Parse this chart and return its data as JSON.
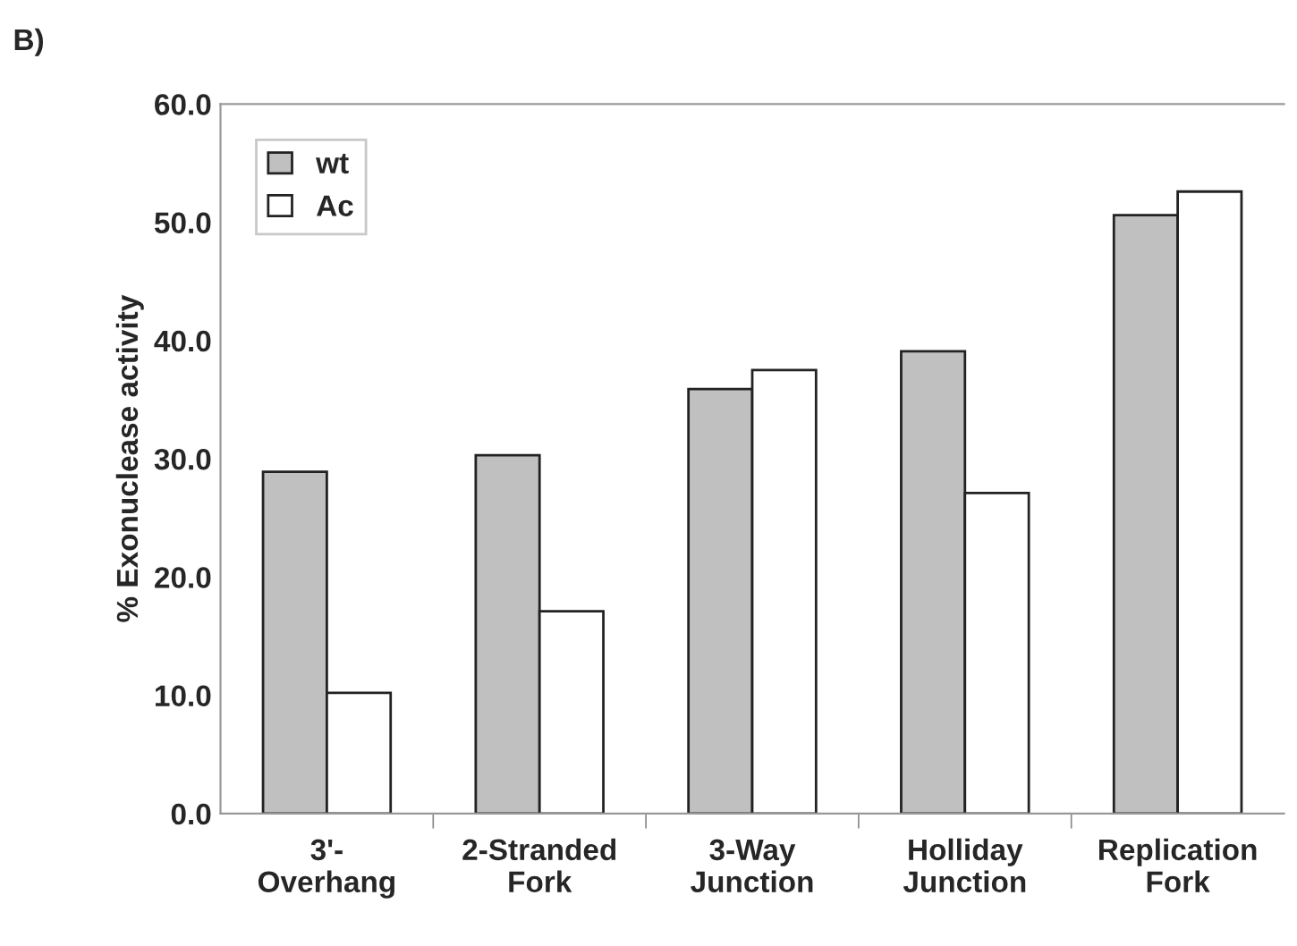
{
  "chart_data": {
    "type": "bar",
    "title": "B)",
    "ylabel": "% Exonuclease activity",
    "categories": [
      "3'-\nOverhang",
      "2-Stranded\nFork",
      "3-Way\nJunction",
      "Holliday\nJunction",
      "Replication\nFork"
    ],
    "series": [
      {
        "name": "wt",
        "color": "#c0c0c0",
        "values": [
          28.9,
          30.3,
          35.9,
          39.1,
          50.6
        ]
      },
      {
        "name": "Ac",
        "color": "#ffffff",
        "values": [
          10.2,
          17.1,
          37.5,
          27.1,
          52.6
        ]
      }
    ],
    "ylim": [
      0,
      60
    ],
    "yticks": [
      {
        "value": 0,
        "label": "0.0"
      },
      {
        "value": 10,
        "label": "10.0"
      },
      {
        "value": 20,
        "label": "20.0"
      },
      {
        "value": 30,
        "label": "30.0"
      },
      {
        "value": 40,
        "label": "40.0"
      },
      {
        "value": 50,
        "label": "50.0"
      },
      {
        "value": 60,
        "label": "60.0"
      }
    ],
    "grid": false,
    "legend": "top left"
  }
}
